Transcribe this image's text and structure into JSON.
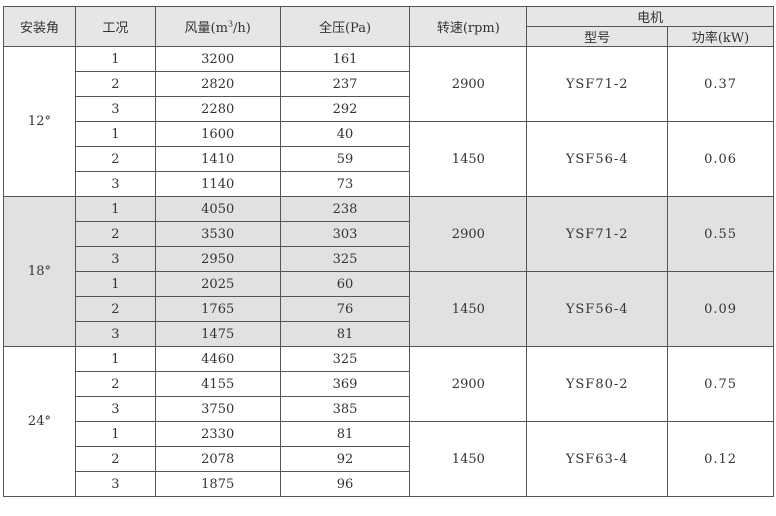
{
  "headers": {
    "angle": "安装角",
    "condition": "工况",
    "airflow_prefix": "风量(m",
    "airflow_sup": "3",
    "airflow_suffix": "/h)",
    "pressure": "全压(Pa)",
    "speed": "转速(rpm)",
    "motor": "电机",
    "model": "型号",
    "power": "功率(kW)"
  },
  "groups": [
    {
      "angle": "12°",
      "shaded": false,
      "subgroups": [
        {
          "speed": "2900",
          "model": "YSF71-2",
          "power": "0.37",
          "rows": [
            [
              "1",
              "3200",
              "161"
            ],
            [
              "2",
              "2820",
              "237"
            ],
            [
              "3",
              "2280",
              "292"
            ]
          ]
        },
        {
          "speed": "1450",
          "model": "YSF56-4",
          "power": "0.06",
          "rows": [
            [
              "1",
              "1600",
              "40"
            ],
            [
              "2",
              "1410",
              "59"
            ],
            [
              "3",
              "1140",
              "73"
            ]
          ]
        }
      ]
    },
    {
      "angle": "18°",
      "shaded": true,
      "subgroups": [
        {
          "speed": "2900",
          "model": "YSF71-2",
          "power": "0.55",
          "rows": [
            [
              "1",
              "4050",
              "238"
            ],
            [
              "2",
              "3530",
              "303"
            ],
            [
              "3",
              "2950",
              "325"
            ]
          ]
        },
        {
          "speed": "1450",
          "model": "YSF56-4",
          "power": "0.09",
          "rows": [
            [
              "1",
              "2025",
              "60"
            ],
            [
              "2",
              "1765",
              "76"
            ],
            [
              "3",
              "1475",
              "81"
            ]
          ]
        }
      ]
    },
    {
      "angle": "24°",
      "shaded": false,
      "subgroups": [
        {
          "speed": "2900",
          "model": "YSF80-2",
          "power": "0.75",
          "rows": [
            [
              "1",
              "4460",
              "325"
            ],
            [
              "2",
              "4155",
              "369"
            ],
            [
              "3",
              "3750",
              "385"
            ]
          ]
        },
        {
          "speed": "1450",
          "model": "YSF63-4",
          "power": "0.12",
          "rows": [
            [
              "1",
              "2330",
              "81"
            ],
            [
              "2",
              "2078",
              "92"
            ],
            [
              "3",
              "1875",
              "96"
            ]
          ]
        }
      ]
    }
  ]
}
